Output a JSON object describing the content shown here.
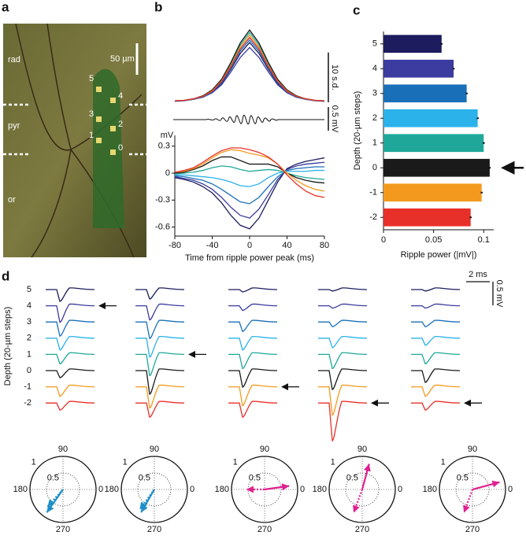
{
  "panels": {
    "a": "a",
    "b": "b",
    "c": "c",
    "d": "d"
  },
  "image": {
    "labels": [
      "rad",
      "pyr",
      "or"
    ],
    "scale_label": "50 µm",
    "sites": [
      "5",
      "4",
      "3",
      "2",
      "1",
      "0"
    ]
  },
  "chart_data": [
    {
      "type": "line",
      "x": [
        -80,
        -70,
        -60,
        -50,
        -40,
        -30,
        -20,
        -10,
        0,
        10,
        20,
        30,
        40,
        50,
        60,
        70,
        80
      ],
      "ylim": [
        0,
        15
      ],
      "scale_bar": {
        "value": 10,
        "label": "10 s.d."
      },
      "ripple_scale": {
        "value": 0.5,
        "label": "0.5 mV"
      },
      "series": [
        {
          "color": "#1c1c5e",
          "values": [
            0.2,
            0.4,
            0.6,
            1.1,
            2,
            3.8,
            6.6,
            9.8,
            12,
            9.8,
            6.6,
            3.8,
            2,
            1.1,
            0.6,
            0.4,
            0.2
          ]
        },
        {
          "color": "#3b3ba0",
          "values": [
            0.2,
            0.3,
            0.6,
            1,
            1.9,
            3.5,
            6.1,
            9,
            11,
            9,
            6.1,
            3.5,
            1.9,
            1,
            0.6,
            0.3,
            0.2
          ]
        },
        {
          "color": "#1a70b8",
          "values": [
            0.3,
            0.4,
            0.6,
            1.1,
            2.1,
            4,
            6.9,
            10.3,
            12.5,
            10.3,
            6.9,
            4,
            2.1,
            1.1,
            0.6,
            0.4,
            0.3
          ]
        },
        {
          "color": "#2bb2ea",
          "values": [
            0.3,
            0.4,
            0.7,
            1.2,
            2.2,
            4.2,
            7.2,
            10.7,
            13,
            10.7,
            7.2,
            4.2,
            2.2,
            1.2,
            0.7,
            0.4,
            0.3
          ]
        },
        {
          "color": "#1fa89a",
          "values": [
            0.3,
            0.4,
            0.7,
            1.3,
            2.4,
            4.5,
            7.7,
            11.5,
            14,
            11.5,
            7.7,
            4.5,
            2.4,
            1.3,
            0.7,
            0.4,
            0.3
          ]
        },
        {
          "color": "#1a1a1a",
          "values": [
            0.3,
            0.4,
            0.7,
            1.3,
            2.5,
            4.6,
            8,
            11.9,
            14.5,
            11.9,
            8,
            4.6,
            2.5,
            1.3,
            0.7,
            0.4,
            0.3
          ]
        },
        {
          "color": "#f39a1e",
          "values": [
            0.3,
            0.4,
            0.7,
            1.2,
            2.3,
            4.3,
            7.4,
            11.1,
            13.5,
            11.1,
            7.4,
            4.3,
            2.3,
            1.2,
            0.7,
            0.4,
            0.3
          ]
        },
        {
          "color": "#e8302a",
          "values": [
            0.3,
            0.4,
            0.7,
            1.2,
            2.2,
            4.2,
            7.2,
            10.7,
            13,
            10.7,
            7.2,
            4.2,
            2.2,
            1.2,
            0.7,
            0.4,
            0.3
          ]
        }
      ]
    },
    {
      "type": "line",
      "x": [
        -80,
        -70,
        -60,
        -50,
        -40,
        -30,
        -20,
        -10,
        0,
        10,
        20,
        30,
        40,
        50,
        60,
        70,
        80
      ],
      "xlim": [
        -80,
        80
      ],
      "ylim": [
        -0.7,
        0.35
      ],
      "xticks": [
        -80,
        -40,
        0,
        40,
        80
      ],
      "yticks": [
        0.3,
        0,
        -0.3,
        -0.6
      ],
      "ylabel": "mV",
      "xlabel": "Time from ripple power peak (ms)",
      "series": [
        {
          "color": "#1c1c5e",
          "values": [
            -0.05,
            -0.07,
            -0.1,
            -0.15,
            -0.22,
            -0.33,
            -0.47,
            -0.58,
            -0.62,
            -0.5,
            -0.3,
            -0.1,
            0.05,
            0.1,
            0.13,
            0.15,
            0.17
          ]
        },
        {
          "color": "#3b3ba0",
          "values": [
            -0.04,
            -0.06,
            -0.08,
            -0.12,
            -0.18,
            -0.27,
            -0.38,
            -0.47,
            -0.5,
            -0.4,
            -0.24,
            -0.07,
            0.04,
            0.08,
            0.1,
            0.11,
            0.12
          ]
        },
        {
          "color": "#1a70b8",
          "values": [
            -0.03,
            -0.04,
            -0.06,
            -0.08,
            -0.12,
            -0.18,
            -0.25,
            -0.32,
            -0.34,
            -0.27,
            -0.15,
            -0.04,
            0.03,
            0.05,
            0.06,
            0.07,
            0.07
          ]
        },
        {
          "color": "#2bb2ea",
          "values": [
            -0.02,
            -0.02,
            -0.03,
            -0.04,
            -0.05,
            -0.07,
            -0.1,
            -0.14,
            -0.15,
            -0.12,
            -0.05,
            0,
            0.02,
            0.02,
            0.02,
            0.03,
            0.03
          ]
        },
        {
          "color": "#1fa89a",
          "values": [
            -0.01,
            0,
            0.01,
            0.03,
            0.06,
            0.08,
            0.07,
            0.04,
            0.02,
            0.03,
            0.04,
            0.03,
            0,
            -0.03,
            -0.05,
            -0.06,
            -0.07
          ]
        },
        {
          "color": "#1a1a1a",
          "values": [
            0,
            0.01,
            0.04,
            0.08,
            0.14,
            0.18,
            0.18,
            0.14,
            0.1,
            0.1,
            0.1,
            0.07,
            0,
            -0.05,
            -0.08,
            -0.1,
            -0.11
          ]
        },
        {
          "color": "#f39a1e",
          "values": [
            0.01,
            0.02,
            0.05,
            0.1,
            0.17,
            0.23,
            0.26,
            0.25,
            0.22,
            0.2,
            0.17,
            0.1,
            0,
            -0.08,
            -0.14,
            -0.18,
            -0.2
          ]
        },
        {
          "color": "#e8302a",
          "values": [
            0.01,
            0.03,
            0.06,
            0.12,
            0.19,
            0.25,
            0.28,
            0.28,
            0.26,
            0.23,
            0.18,
            0.1,
            -0.02,
            -0.12,
            -0.2,
            -0.25,
            -0.27
          ]
        }
      ]
    },
    {
      "type": "bar",
      "categories": [
        "5",
        "4",
        "3",
        "2",
        "1",
        "0",
        "-1",
        "-2"
      ],
      "values": [
        0.058,
        0.07,
        0.083,
        0.094,
        0.1,
        0.106,
        0.098,
        0.087
      ],
      "errors": [
        0.001,
        0.001,
        0.001,
        0.001,
        0.001,
        0.001,
        0.001,
        0.001
      ],
      "colors": [
        "#1c1c5e",
        "#3b3ba0",
        "#1a70b8",
        "#2bb2ea",
        "#1fa89a",
        "#1a1a1a",
        "#f39a1e",
        "#e8302a"
      ],
      "xlim": [
        0,
        0.11
      ],
      "xticks": [
        0,
        0.05,
        0.1
      ],
      "xlabel": "Ripple power (|mV|)",
      "ylabel": "Depth (20-µm steps)"
    }
  ],
  "waveforms": {
    "depths": [
      "5",
      "4",
      "3",
      "2",
      "1",
      "0",
      "-1",
      "-2"
    ],
    "ylabel": "Depth (20-µm steps)",
    "colors": [
      "#1c1c5e",
      "#3b3ba0",
      "#1a70b8",
      "#2bb2ea",
      "#1fa89a",
      "#1a1a1a",
      "#f39a1e",
      "#e8302a"
    ],
    "time_scale": "2 ms",
    "amp_scale": {
      "value": 0.5,
      "label": "0.5 mV"
    },
    "columns": [
      {
        "amplitudes": [
          0.25,
          0.35,
          0.3,
          0.25,
          0.2,
          0.15,
          0.2,
          0.15
        ],
        "arrow_row": 1
      },
      {
        "amplitudes": [
          0.2,
          0.3,
          0.35,
          0.4,
          0.45,
          0.5,
          0.45,
          0.3
        ],
        "arrow_row": 4
      },
      {
        "amplitudes": [
          0.05,
          0.1,
          0.2,
          0.25,
          0.3,
          0.35,
          0.4,
          0.3
        ],
        "arrow_row": 6
      },
      {
        "amplitudes": [
          0.03,
          0.05,
          0.1,
          0.2,
          0.3,
          0.4,
          0.6,
          0.8
        ],
        "arrow_row": 7
      },
      {
        "amplitudes": [
          0.03,
          0.05,
          0.1,
          0.15,
          0.2,
          0.25,
          0.2,
          0.15
        ],
        "arrow_row": 7
      }
    ]
  },
  "polar": {
    "labels": {
      "top": "90",
      "left": "180",
      "right": "0",
      "bottom": "270"
    },
    "rlim": [
      0,
      1
    ],
    "rticks": [
      0.5,
      1
    ],
    "plots": [
      {
        "color": "#1f8fc8",
        "vectors": [
          {
            "angle": 235,
            "length": 0.85,
            "style": "solid"
          },
          {
            "angle": 228,
            "length": 0.7,
            "style": "dotted"
          }
        ]
      },
      {
        "color": "#1f8fc8",
        "vectors": [
          {
            "angle": 240,
            "length": 0.8,
            "style": "solid"
          },
          {
            "angle": 234,
            "length": 0.75,
            "style": "dotted"
          }
        ]
      },
      {
        "color": "#e0208f",
        "vectors": [
          {
            "angle": 8,
            "length": 0.75,
            "style": "solid"
          },
          {
            "angle": 180,
            "length": 0.55,
            "style": "dotted"
          }
        ]
      },
      {
        "color": "#e0208f",
        "vectors": [
          {
            "angle": 75,
            "length": 0.8,
            "style": "solid"
          },
          {
            "angle": 250,
            "length": 0.75,
            "style": "dotted"
          }
        ]
      },
      {
        "color": "#e0208f",
        "vectors": [
          {
            "angle": 15,
            "length": 0.85,
            "style": "solid"
          },
          {
            "angle": 250,
            "length": 0.75,
            "style": "dotted"
          }
        ]
      }
    ]
  }
}
